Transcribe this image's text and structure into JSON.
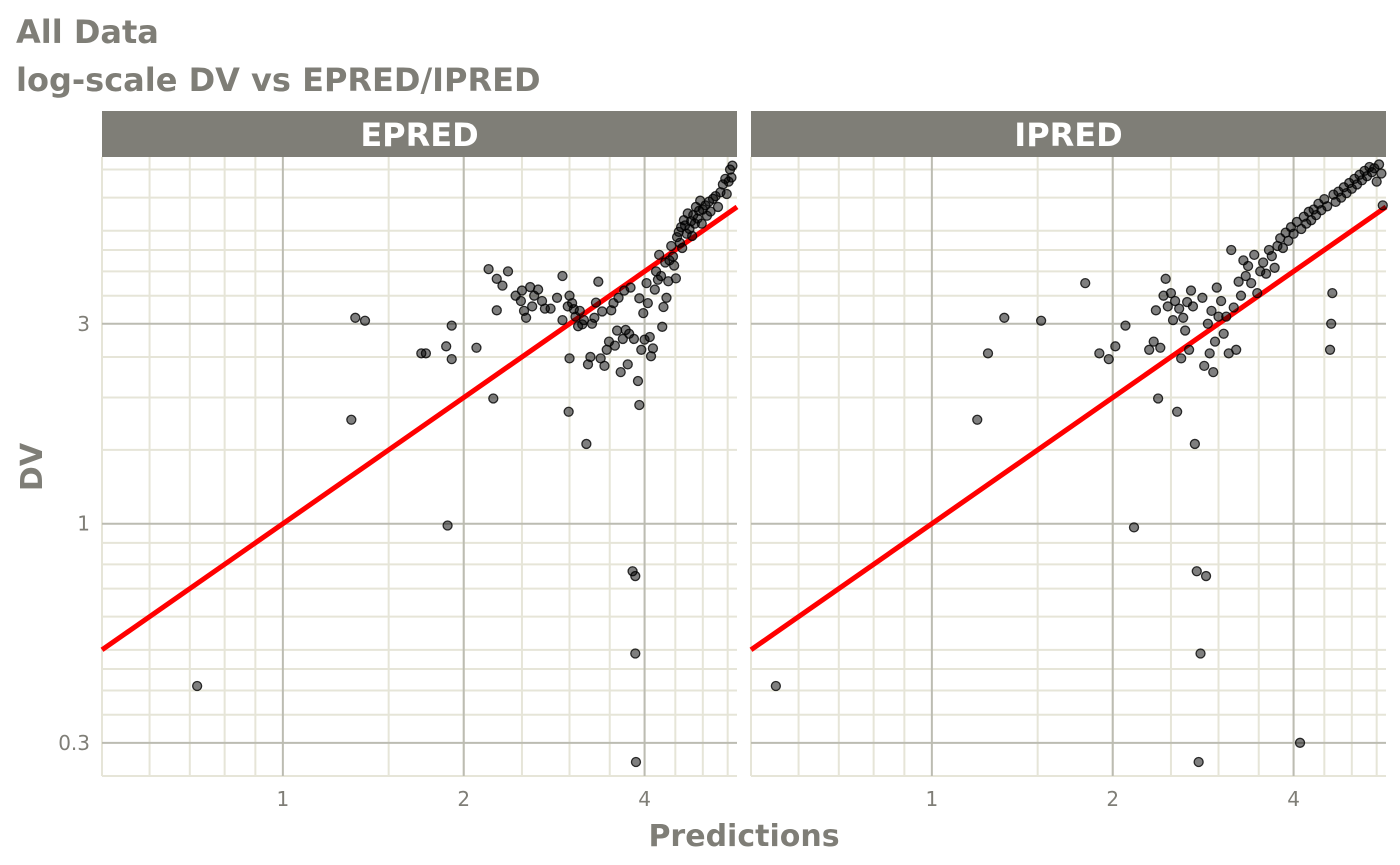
{
  "chart_data": {
    "type": "scatter",
    "title": "All Data",
    "subtitle": "log-scale DV vs EPRED/IPRED",
    "xlabel": "Predictions",
    "ylabel": "DV",
    "x_scale": "log",
    "y_scale": "log",
    "xlim": [
      0.5,
      5.7
    ],
    "ylim": [
      0.25,
      7.5
    ],
    "x_ticks": [
      1,
      2,
      4
    ],
    "x_tick_labels": [
      "1",
      "2",
      "4"
    ],
    "y_ticks": [
      0.3,
      1,
      3
    ],
    "y_tick_labels": [
      "0.3",
      "1",
      "3"
    ],
    "reference_line": {
      "type": "identity",
      "slope": 1,
      "intercept": 0,
      "color": "#ff0000"
    },
    "grid": true,
    "colors": {
      "points": "#000000",
      "line": "#ff0000",
      "strip": "#7f7e77",
      "grid_major": "#bcbcb2",
      "grid_minor": "#e6e5d8",
      "text": "#7f7e77"
    },
    "panels": [
      {
        "name": "EPRED",
        "points": [
          [
            0.72,
            0.41
          ],
          [
            1.3,
            1.77
          ],
          [
            1.32,
            3.1
          ],
          [
            1.37,
            3.05
          ],
          [
            1.7,
            2.55
          ],
          [
            1.73,
            2.55
          ],
          [
            1.87,
            2.65
          ],
          [
            1.88,
            0.99
          ],
          [
            1.91,
            2.97
          ],
          [
            1.91,
            2.47
          ],
          [
            2.1,
            2.63
          ],
          [
            2.2,
            4.05
          ],
          [
            2.24,
            1.99
          ],
          [
            2.27,
            3.23
          ],
          [
            2.27,
            3.84
          ],
          [
            2.32,
            3.7
          ],
          [
            2.37,
            4.0
          ],
          [
            2.44,
            3.5
          ],
          [
            2.49,
            3.4
          ],
          [
            2.5,
            3.6
          ],
          [
            2.52,
            3.22
          ],
          [
            2.54,
            3.1
          ],
          [
            2.58,
            3.67
          ],
          [
            2.6,
            3.3
          ],
          [
            2.62,
            3.5
          ],
          [
            2.66,
            3.62
          ],
          [
            2.7,
            3.4
          ],
          [
            2.73,
            3.26
          ],
          [
            2.79,
            3.26
          ],
          [
            2.86,
            3.46
          ],
          [
            2.92,
            3.06
          ],
          [
            2.92,
            3.9
          ],
          [
            2.98,
            3.3
          ],
          [
            2.99,
            1.85
          ],
          [
            3.0,
            3.5
          ],
          [
            3.0,
            2.48
          ],
          [
            3.03,
            3.36
          ],
          [
            3.05,
            3.25
          ],
          [
            3.07,
            3.12
          ],
          [
            3.1,
            2.96
          ],
          [
            3.12,
            3.22
          ],
          [
            3.15,
            2.99
          ],
          [
            3.17,
            3.06
          ],
          [
            3.2,
            1.55
          ],
          [
            3.22,
            2.4
          ],
          [
            3.25,
            2.5
          ],
          [
            3.27,
            3.0
          ],
          [
            3.3,
            3.1
          ],
          [
            3.32,
            3.37
          ],
          [
            3.35,
            3.78
          ],
          [
            3.38,
            2.48
          ],
          [
            3.4,
            3.21
          ],
          [
            3.43,
            2.38
          ],
          [
            3.46,
            2.6
          ],
          [
            3.49,
            2.72
          ],
          [
            3.52,
            3.23
          ],
          [
            3.55,
            3.36
          ],
          [
            3.57,
            2.66
          ],
          [
            3.6,
            2.89
          ],
          [
            3.62,
            3.46
          ],
          [
            3.65,
            2.3
          ],
          [
            3.68,
            2.76
          ],
          [
            3.7,
            3.6
          ],
          [
            3.72,
            2.9
          ],
          [
            3.75,
            2.4
          ],
          [
            3.77,
            2.84
          ],
          [
            3.79,
            3.66
          ],
          [
            3.82,
            0.77
          ],
          [
            3.84,
            2.76
          ],
          [
            3.86,
            0.75
          ],
          [
            3.86,
            0.49
          ],
          [
            3.87,
            0.27
          ],
          [
            3.9,
            2.19
          ],
          [
            3.92,
            1.92
          ],
          [
            3.92,
            3.45
          ],
          [
            3.95,
            2.6
          ],
          [
            3.98,
            3.18
          ],
          [
            4.0,
            2.75
          ],
          [
            4.03,
            3.75
          ],
          [
            4.05,
            3.36
          ],
          [
            4.08,
            2.79
          ],
          [
            4.1,
            2.51
          ],
          [
            4.13,
            2.62
          ],
          [
            4.16,
            3.62
          ],
          [
            4.18,
            4.0
          ],
          [
            4.21,
            3.82
          ],
          [
            4.23,
            4.38
          ],
          [
            4.26,
            3.9
          ],
          [
            4.28,
            2.95
          ],
          [
            4.3,
            3.29
          ],
          [
            4.33,
            4.2
          ],
          [
            4.35,
            3.46
          ],
          [
            4.38,
            3.79
          ],
          [
            4.4,
            4.25
          ],
          [
            4.43,
            4.6
          ],
          [
            4.46,
            4.34
          ],
          [
            4.48,
            4.13
          ],
          [
            4.51,
            3.85
          ],
          [
            4.53,
            4.83
          ],
          [
            4.56,
            4.97
          ],
          [
            4.58,
            4.68
          ],
          [
            4.6,
            5.1
          ],
          [
            4.62,
            4.55
          ],
          [
            4.65,
            5.3
          ],
          [
            4.67,
            5.15
          ],
          [
            4.7,
            4.92
          ],
          [
            4.72,
            5.5
          ],
          [
            4.75,
            5.05
          ],
          [
            4.78,
            5.27
          ],
          [
            4.8,
            4.86
          ],
          [
            4.82,
            5.45
          ],
          [
            4.85,
            5.2
          ],
          [
            4.87,
            5.7
          ],
          [
            4.9,
            5.35
          ],
          [
            4.93,
            5.58
          ],
          [
            4.95,
            5.9
          ],
          [
            4.98,
            5.2
          ],
          [
            5.0,
            5.62
          ],
          [
            5.05,
            5.75
          ],
          [
            5.08,
            5.43
          ],
          [
            5.12,
            5.87
          ],
          [
            5.15,
            5.56
          ],
          [
            5.2,
            5.96
          ],
          [
            5.25,
            6.05
          ],
          [
            5.3,
            5.7
          ],
          [
            5.35,
            6.18
          ],
          [
            5.4,
            6.45
          ],
          [
            5.45,
            6.65
          ],
          [
            5.48,
            6.12
          ],
          [
            5.52,
            6.55
          ],
          [
            5.55,
            7.0
          ],
          [
            5.58,
            6.7
          ],
          [
            5.6,
            7.15
          ]
        ]
      },
      {
        "name": "IPRED",
        "points": [
          [
            0.55,
            0.41
          ],
          [
            1.19,
            1.77
          ],
          [
            1.24,
            2.55
          ],
          [
            1.32,
            3.1
          ],
          [
            1.52,
            3.05
          ],
          [
            1.8,
            3.75
          ],
          [
            1.9,
            2.55
          ],
          [
            1.97,
            2.47
          ],
          [
            2.02,
            2.65
          ],
          [
            2.1,
            2.97
          ],
          [
            2.17,
            0.98
          ],
          [
            2.3,
            2.6
          ],
          [
            2.34,
            2.72
          ],
          [
            2.36,
            3.23
          ],
          [
            2.38,
            1.99
          ],
          [
            2.4,
            2.63
          ],
          [
            2.43,
            3.5
          ],
          [
            2.45,
            3.84
          ],
          [
            2.47,
            3.3
          ],
          [
            2.5,
            3.55
          ],
          [
            2.52,
            3.06
          ],
          [
            2.54,
            3.4
          ],
          [
            2.56,
            1.85
          ],
          [
            2.58,
            3.26
          ],
          [
            2.6,
            2.48
          ],
          [
            2.62,
            3.1
          ],
          [
            2.64,
            2.89
          ],
          [
            2.66,
            3.38
          ],
          [
            2.68,
            2.6
          ],
          [
            2.7,
            3.6
          ],
          [
            2.72,
            3.3
          ],
          [
            2.74,
            1.55
          ],
          [
            2.76,
            0.77
          ],
          [
            2.78,
            0.27
          ],
          [
            2.8,
            0.49
          ],
          [
            2.82,
            3.46
          ],
          [
            2.84,
            2.38
          ],
          [
            2.86,
            0.75
          ],
          [
            2.88,
            3.0
          ],
          [
            2.9,
            2.55
          ],
          [
            2.92,
            3.22
          ],
          [
            2.94,
            2.3
          ],
          [
            2.96,
            2.72
          ],
          [
            2.98,
            3.66
          ],
          [
            3.0,
            3.12
          ],
          [
            3.03,
            3.4
          ],
          [
            3.06,
            2.84
          ],
          [
            3.09,
            3.12
          ],
          [
            3.12,
            2.55
          ],
          [
            3.15,
            4.5
          ],
          [
            3.18,
            3.28
          ],
          [
            3.21,
            2.6
          ],
          [
            3.24,
            3.78
          ],
          [
            3.27,
            3.5
          ],
          [
            3.3,
            4.25
          ],
          [
            3.33,
            3.9
          ],
          [
            3.36,
            4.12
          ],
          [
            3.4,
            3.75
          ],
          [
            3.44,
            4.38
          ],
          [
            3.48,
            3.55
          ],
          [
            3.52,
            4.0
          ],
          [
            3.56,
            4.2
          ],
          [
            3.6,
            3.95
          ],
          [
            3.64,
            4.5
          ],
          [
            3.68,
            4.35
          ],
          [
            3.72,
            4.08
          ],
          [
            3.76,
            4.6
          ],
          [
            3.8,
            4.8
          ],
          [
            3.84,
            4.55
          ],
          [
            3.88,
            4.95
          ],
          [
            3.92,
            4.73
          ],
          [
            3.96,
            5.1
          ],
          [
            4.0,
            4.92
          ],
          [
            4.05,
            5.25
          ],
          [
            4.1,
            0.3
          ],
          [
            4.12,
            5.05
          ],
          [
            4.16,
            5.4
          ],
          [
            4.2,
            5.2
          ],
          [
            4.24,
            5.55
          ],
          [
            4.28,
            5.3
          ],
          [
            4.32,
            5.62
          ],
          [
            4.36,
            5.45
          ],
          [
            4.4,
            5.8
          ],
          [
            4.45,
            5.6
          ],
          [
            4.5,
            5.95
          ],
          [
            4.55,
            5.72
          ],
          [
            4.6,
            2.6
          ],
          [
            4.62,
            3.0
          ],
          [
            4.64,
            3.55
          ],
          [
            4.66,
            6.1
          ],
          [
            4.7,
            5.86
          ],
          [
            4.75,
            6.2
          ],
          [
            4.8,
            6.0
          ],
          [
            4.85,
            6.35
          ],
          [
            4.9,
            6.15
          ],
          [
            4.95,
            6.5
          ],
          [
            5.0,
            6.3
          ],
          [
            5.05,
            6.65
          ],
          [
            5.1,
            6.45
          ],
          [
            5.15,
            6.8
          ],
          [
            5.2,
            6.6
          ],
          [
            5.25,
            6.95
          ],
          [
            5.3,
            6.75
          ],
          [
            5.35,
            7.1
          ],
          [
            5.4,
            6.9
          ],
          [
            5.45,
            7.05
          ],
          [
            5.5,
            6.55
          ],
          [
            5.55,
            7.2
          ],
          [
            5.6,
            6.85
          ],
          [
            5.63,
            5.75
          ]
        ]
      }
    ]
  }
}
